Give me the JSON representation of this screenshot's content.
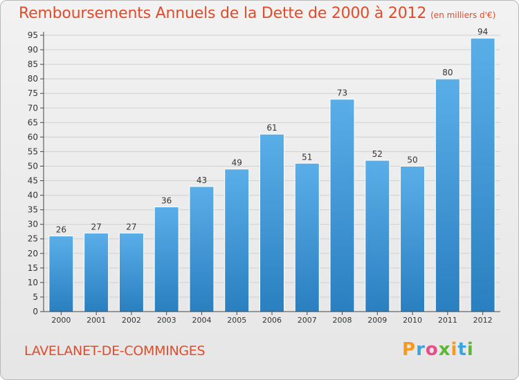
{
  "header": {
    "title": "Remboursements Annuels de la Dette de 2000 à 2012",
    "unit_note": "(en milliers d'€)"
  },
  "footer": {
    "commune": "LAVELANET-DE-COMMINGES",
    "brand": "Proxiti",
    "brand_colors": [
      "#f39a1f",
      "#3aa6dd",
      "#e84d8a",
      "#5bb832",
      "#f39a1f",
      "#3aa6dd",
      "#5bb832"
    ]
  },
  "colors": {
    "bar_top": "#5aaee8",
    "bar_bottom": "#2a7fc0",
    "title": "#e14b2a",
    "grid": "#d0d0d0",
    "axis": "#444444"
  },
  "chart_data": {
    "type": "bar",
    "categories": [
      "2000",
      "2001",
      "2002",
      "2003",
      "2004",
      "2005",
      "2006",
      "2007",
      "2008",
      "2009",
      "2010",
      "2011",
      "2012"
    ],
    "values": [
      26,
      27,
      27,
      36,
      43,
      49,
      61,
      51,
      73,
      52,
      50,
      80,
      94
    ],
    "ylim": [
      0,
      95
    ],
    "ytick_step": 5,
    "grid": true
  }
}
